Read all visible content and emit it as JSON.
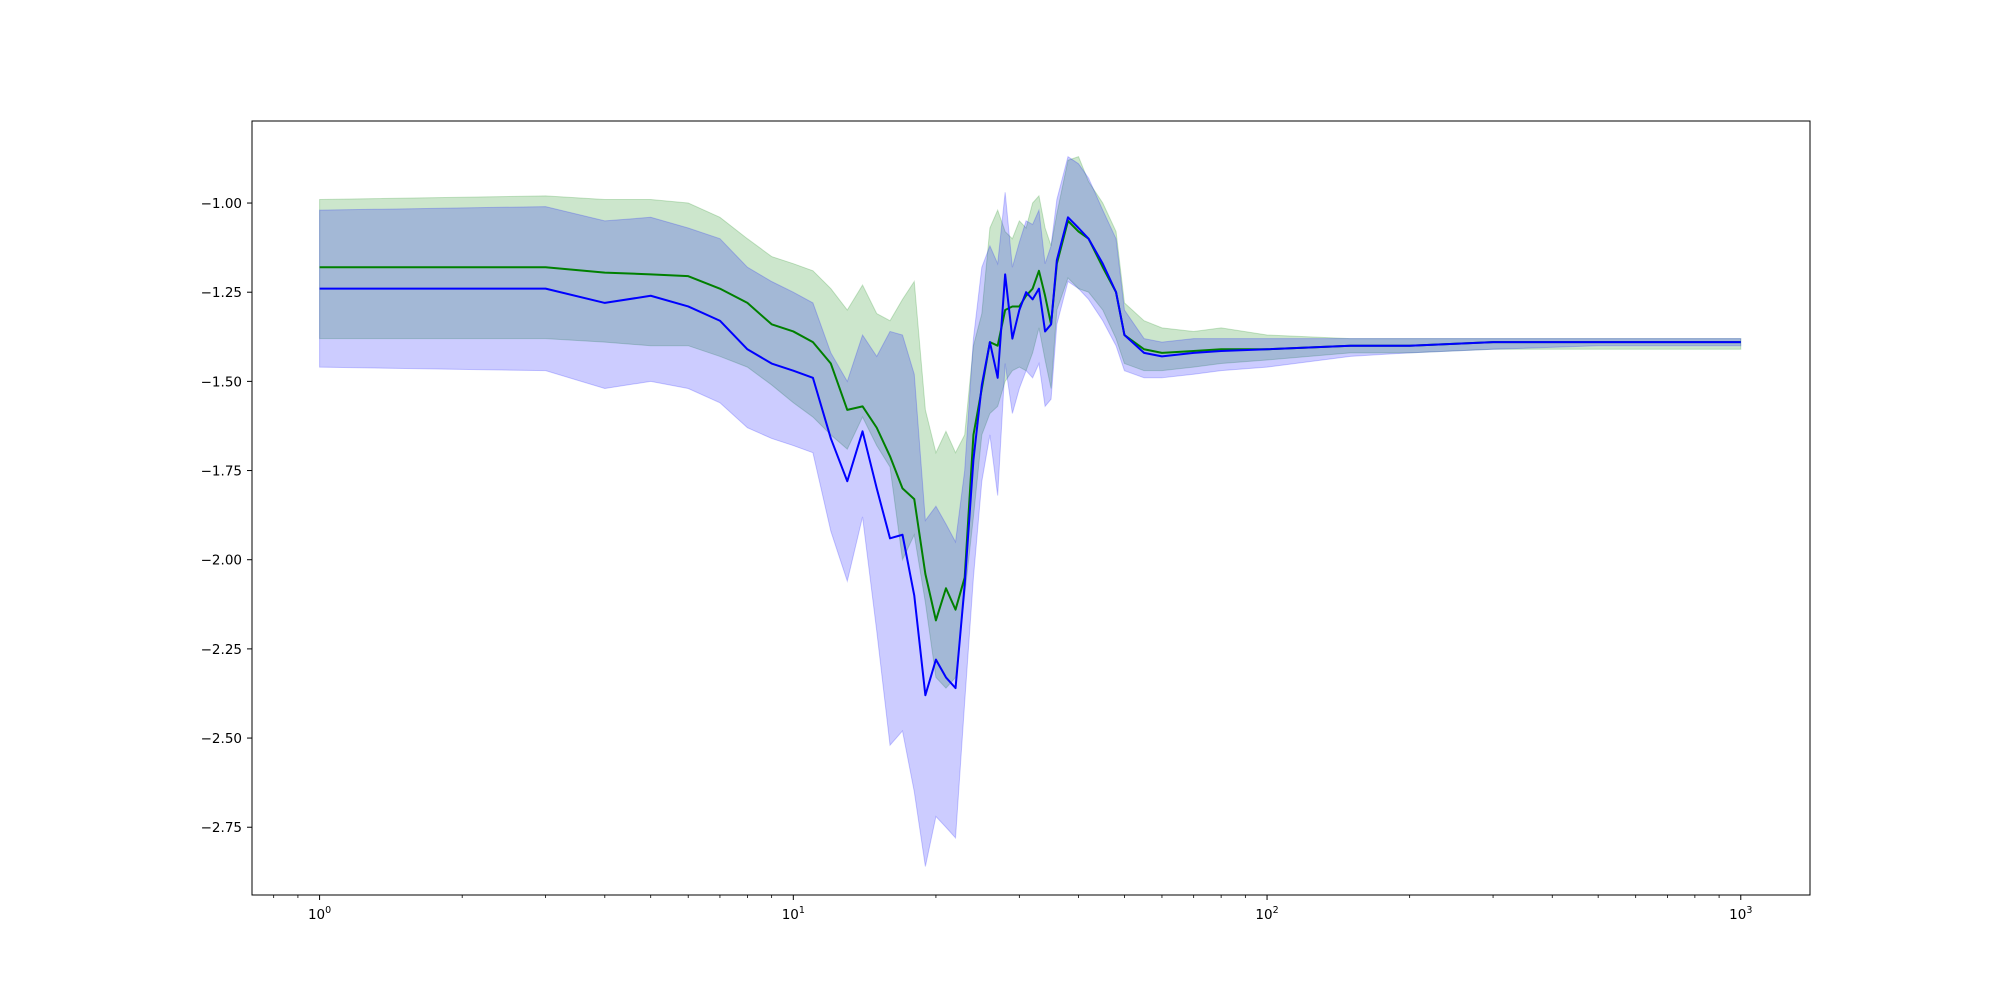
{
  "chart_data": {
    "type": "line",
    "title": "",
    "xlabel": "",
    "ylabel": "",
    "xscale": "log",
    "xlim": [
      0.72,
      1400
    ],
    "ylim": [
      -2.94,
      -0.77
    ],
    "grid": false,
    "legend": "none",
    "x_ticks": [
      {
        "value": 1,
        "base": "10",
        "exp": "0"
      },
      {
        "value": 10,
        "base": "10",
        "exp": "1"
      },
      {
        "value": 100,
        "base": "10",
        "exp": "2"
      },
      {
        "value": 1000,
        "base": "10",
        "exp": "3"
      }
    ],
    "y_ticks": [
      {
        "value": -1.0,
        "label": "−1.00"
      },
      {
        "value": -1.25,
        "label": "−1.25"
      },
      {
        "value": -1.5,
        "label": "−1.50"
      },
      {
        "value": -1.75,
        "label": "−1.75"
      },
      {
        "value": -2.0,
        "label": "−2.00"
      },
      {
        "value": -2.25,
        "label": "−2.25"
      },
      {
        "value": -2.5,
        "label": "−2.50"
      },
      {
        "value": -2.75,
        "label": "−2.75"
      }
    ],
    "x": [
      1,
      3,
      4,
      5,
      6,
      7,
      8,
      9,
      10,
      11,
      12,
      13,
      14,
      15,
      16,
      17,
      18,
      19,
      20,
      21,
      22,
      23,
      24,
      25,
      26,
      27,
      28,
      29,
      30,
      31,
      32,
      33,
      34,
      35,
      36,
      38,
      40,
      42,
      45,
      48,
      50,
      55,
      60,
      70,
      80,
      100,
      150,
      200,
      300,
      500,
      1000
    ],
    "series": [
      {
        "color": "#008000",
        "band_color": "#008000",
        "band_opacity": 0.2,
        "values": [
          -1.18,
          -1.18,
          -1.195,
          -1.2,
          -1.205,
          -1.24,
          -1.28,
          -1.34,
          -1.36,
          -1.39,
          -1.45,
          -1.58,
          -1.57,
          -1.63,
          -1.71,
          -1.8,
          -1.83,
          -2.04,
          -2.17,
          -2.08,
          -2.14,
          -2.05,
          -1.65,
          -1.52,
          -1.39,
          -1.4,
          -1.3,
          -1.29,
          -1.29,
          -1.26,
          -1.24,
          -1.19,
          -1.26,
          -1.34,
          -1.17,
          -1.05,
          -1.08,
          -1.1,
          -1.18,
          -1.25,
          -1.37,
          -1.41,
          -1.42,
          -1.415,
          -1.41,
          -1.41,
          -1.4,
          -1.4,
          -1.39,
          -1.39,
          -1.39
        ],
        "lower": [
          -1.38,
          -1.38,
          -1.39,
          -1.4,
          -1.4,
          -1.43,
          -1.46,
          -1.51,
          -1.56,
          -1.6,
          -1.65,
          -1.69,
          -1.6,
          -1.68,
          -1.74,
          -2.0,
          -1.93,
          -2.12,
          -2.33,
          -2.36,
          -2.33,
          -2.1,
          -1.88,
          -1.65,
          -1.59,
          -1.57,
          -1.5,
          -1.47,
          -1.46,
          -1.47,
          -1.42,
          -1.35,
          -1.44,
          -1.52,
          -1.3,
          -1.21,
          -1.24,
          -1.25,
          -1.3,
          -1.38,
          -1.45,
          -1.47,
          -1.47,
          -1.46,
          -1.45,
          -1.44,
          -1.42,
          -1.42,
          -1.41,
          -1.41,
          -1.41
        ],
        "upper": [
          -0.99,
          -0.98,
          -0.99,
          -0.99,
          -1.0,
          -1.04,
          -1.1,
          -1.15,
          -1.17,
          -1.19,
          -1.24,
          -1.3,
          -1.23,
          -1.31,
          -1.33,
          -1.27,
          -1.22,
          -1.58,
          -1.7,
          -1.64,
          -1.7,
          -1.65,
          -1.4,
          -1.31,
          -1.07,
          -1.02,
          -1.08,
          -1.1,
          -1.05,
          -1.07,
          -1.0,
          -0.98,
          -1.07,
          -1.12,
          -1.03,
          -0.88,
          -0.87,
          -0.94,
          -1.0,
          -1.08,
          -1.28,
          -1.33,
          -1.35,
          -1.36,
          -1.35,
          -1.37,
          -1.38,
          -1.38,
          -1.38,
          -1.38,
          -1.38
        ]
      },
      {
        "color": "#0000ff",
        "band_color": "#0000ff",
        "band_opacity": 0.2,
        "values": [
          -1.24,
          -1.24,
          -1.28,
          -1.26,
          -1.29,
          -1.33,
          -1.41,
          -1.45,
          -1.47,
          -1.49,
          -1.66,
          -1.78,
          -1.64,
          -1.8,
          -1.94,
          -1.93,
          -2.1,
          -2.38,
          -2.28,
          -2.33,
          -2.36,
          -2.07,
          -1.72,
          -1.51,
          -1.39,
          -1.49,
          -1.2,
          -1.38,
          -1.3,
          -1.25,
          -1.27,
          -1.24,
          -1.36,
          -1.34,
          -1.16,
          -1.04,
          -1.07,
          -1.1,
          -1.17,
          -1.25,
          -1.37,
          -1.42,
          -1.43,
          -1.42,
          -1.415,
          -1.41,
          -1.4,
          -1.4,
          -1.39,
          -1.39,
          -1.39
        ],
        "lower": [
          -1.46,
          -1.47,
          -1.52,
          -1.5,
          -1.52,
          -1.56,
          -1.63,
          -1.66,
          -1.68,
          -1.7,
          -1.92,
          -2.06,
          -1.88,
          -2.2,
          -2.52,
          -2.48,
          -2.65,
          -2.86,
          -2.72,
          -2.75,
          -2.78,
          -2.4,
          -2.05,
          -1.78,
          -1.65,
          -1.82,
          -1.45,
          -1.59,
          -1.52,
          -1.47,
          -1.49,
          -1.45,
          -1.57,
          -1.55,
          -1.34,
          -1.22,
          -1.24,
          -1.27,
          -1.33,
          -1.4,
          -1.47,
          -1.49,
          -1.49,
          -1.48,
          -1.47,
          -1.46,
          -1.43,
          -1.42,
          -1.41,
          -1.4,
          -1.4
        ],
        "upper": [
          -1.02,
          -1.01,
          -1.05,
          -1.04,
          -1.07,
          -1.1,
          -1.18,
          -1.22,
          -1.25,
          -1.28,
          -1.42,
          -1.5,
          -1.37,
          -1.43,
          -1.36,
          -1.37,
          -1.48,
          -1.89,
          -1.85,
          -1.9,
          -1.95,
          -1.75,
          -1.38,
          -1.18,
          -1.12,
          -1.17,
          -0.97,
          -1.18,
          -1.11,
          -1.05,
          -1.06,
          -1.02,
          -1.17,
          -1.12,
          -0.99,
          -0.87,
          -0.89,
          -0.93,
          -1.02,
          -1.1,
          -1.3,
          -1.38,
          -1.39,
          -1.38,
          -1.38,
          -1.38,
          -1.38,
          -1.38,
          -1.38,
          -1.38,
          -1.38
        ]
      }
    ]
  }
}
